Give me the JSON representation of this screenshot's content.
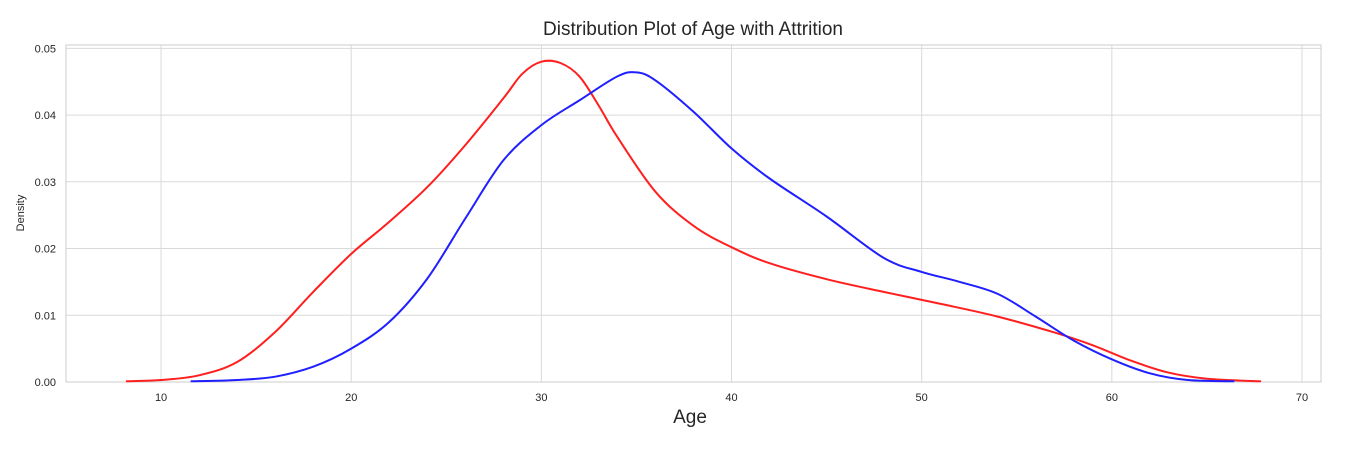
{
  "chart_data": {
    "type": "line",
    "title": "Distribution Plot of Age with Attrition",
    "xlabel": "Age",
    "ylabel": "Density",
    "xlim": [
      5,
      71
    ],
    "ylim": [
      0,
      0.0505
    ],
    "xticks": [
      10,
      20,
      30,
      40,
      50,
      60,
      70
    ],
    "yticks": [
      0.0,
      0.01,
      0.02,
      0.03,
      0.04,
      0.05
    ],
    "ytick_labels": [
      "0.00",
      "0.01",
      "0.02",
      "0.03",
      "0.04",
      "0.05"
    ],
    "grid": true,
    "series": [
      {
        "color": "#ff1f1f",
        "x": [
          8.2,
          10,
          12,
          14,
          16,
          18,
          20,
          22,
          24,
          26,
          28,
          29,
          30,
          31,
          32,
          33,
          34,
          36,
          38,
          40,
          42,
          45,
          48,
          51,
          54,
          57,
          59,
          61,
          63,
          65,
          67.8
        ],
        "y": [
          0.0001,
          0.0003,
          0.001,
          0.003,
          0.0075,
          0.0135,
          0.0192,
          0.024,
          0.0292,
          0.0355,
          0.0425,
          0.0462,
          0.048,
          0.0478,
          0.0458,
          0.0415,
          0.0367,
          0.0285,
          0.0234,
          0.0202,
          0.0178,
          0.0154,
          0.0135,
          0.0117,
          0.0098,
          0.0074,
          0.0055,
          0.0032,
          0.0014,
          0.0005,
          0.0001
        ]
      },
      {
        "color": "#1f1fff",
        "x": [
          11.6,
          14,
          16,
          18,
          20,
          22,
          24,
          26,
          28,
          30,
          32,
          34,
          35,
          36,
          38,
          40,
          42,
          45,
          48,
          50,
          52,
          54,
          56,
          58,
          60,
          62,
          64,
          66.4
        ],
        "y": [
          0.0001,
          0.0003,
          0.0008,
          0.0023,
          0.005,
          0.009,
          0.0155,
          0.0245,
          0.0332,
          0.0385,
          0.0422,
          0.0458,
          0.0464,
          0.0452,
          0.0405,
          0.035,
          0.0305,
          0.0248,
          0.0186,
          0.0165,
          0.015,
          0.0132,
          0.0098,
          0.0062,
          0.0034,
          0.0013,
          0.0003,
          0.0001
        ]
      }
    ]
  }
}
